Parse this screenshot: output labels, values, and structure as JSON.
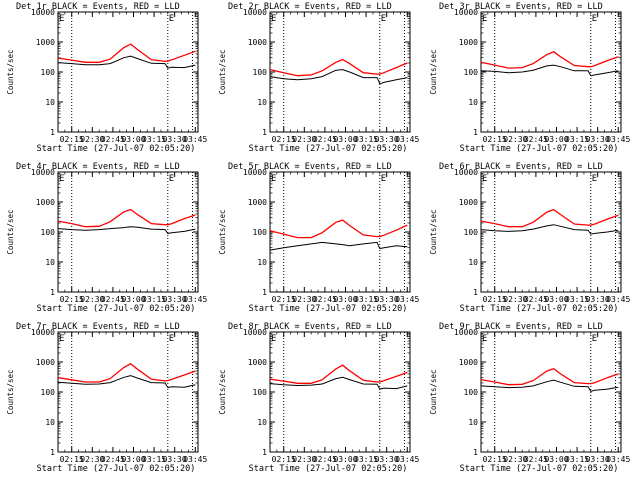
{
  "figure": {
    "common_xlabel": "Start Time (27-Jul-07 02:05:20)",
    "common_ylabel": "Counts/sec",
    "x_tick_labels": [
      "02:15",
      "02:30",
      "02:45",
      "03:00",
      "03:15",
      "03:30",
      "03:45"
    ],
    "y_tick_labels": [
      "1",
      "10",
      "100",
      "1000",
      "10000"
    ],
    "corner_marks": [
      "E",
      "E"
    ],
    "colors": {
      "events": "#000000",
      "lld": "#ff0000",
      "axes": "#000000",
      "background": "#ffffff"
    }
  },
  "chart_data": [
    {
      "type": "line",
      "title": "Det 1r BLACK = Events, RED = LLD",
      "xlabel": "Start Time (27-Jul-07 02:05:20)",
      "ylabel": "Counts/sec",
      "y_scale": "log",
      "ylim": [
        1,
        10000
      ],
      "xlim_minutes": [
        0,
        102
      ],
      "x_ticks": [
        "02:15",
        "02:30",
        "02:45",
        "03:00",
        "03:15",
        "03:30",
        "03:45"
      ],
      "y_ticks": [
        "1",
        "10",
        "100",
        "1000",
        "10000"
      ],
      "vertical_dotted_minutes": [
        10,
        80,
        98
      ],
      "x": [
        0,
        10,
        20,
        30,
        38,
        48,
        53,
        58,
        68,
        78,
        80,
        83,
        92,
        100
      ],
      "series": [
        {
          "values": [
            205,
            190,
            175,
            175,
            190,
            300,
            340,
            280,
            195,
            190,
            135,
            145,
            140,
            170
          ]
        },
        {
          "values": [
            290,
            250,
            210,
            210,
            270,
            650,
            850,
            560,
            260,
            225,
            230,
            255,
            360,
            490
          ]
        }
      ]
    },
    {
      "type": "line",
      "title": "Det 2r BLACK = Events, RED = LLD",
      "xlabel": "Start Time (27-Jul-07 02:05:20)",
      "ylabel": "Counts/sec",
      "y_scale": "log",
      "ylim": [
        1,
        10000
      ],
      "xlim_minutes": [
        0,
        102
      ],
      "x_ticks": [
        "02:15",
        "02:30",
        "02:45",
        "03:00",
        "03:15",
        "03:30",
        "03:45"
      ],
      "y_ticks": [
        "1",
        "10",
        "100",
        "1000",
        "10000"
      ],
      "vertical_dotted_minutes": [
        10,
        80,
        98
      ],
      "x": [
        0,
        10,
        20,
        30,
        38,
        48,
        53,
        58,
        68,
        78,
        80,
        83,
        92,
        100
      ],
      "series": [
        {
          "values": [
            70,
            60,
            55,
            60,
            70,
            115,
            120,
            100,
            65,
            65,
            40,
            45,
            55,
            65
          ]
        },
        {
          "values": [
            120,
            95,
            75,
            80,
            110,
            210,
            260,
            190,
            95,
            85,
            85,
            95,
            140,
            200
          ]
        }
      ]
    },
    {
      "type": "line",
      "title": "Det 3r BLACK = Events, RED = LLD",
      "xlabel": "Start Time (27-Jul-07 02:05:20)",
      "ylabel": "Counts/sec",
      "y_scale": "log",
      "ylim": [
        1,
        10000
      ],
      "xlim_minutes": [
        0,
        102
      ],
      "x_ticks": [
        "02:15",
        "02:30",
        "02:45",
        "03:00",
        "03:15",
        "03:30",
        "03:45"
      ],
      "y_ticks": [
        "1",
        "10",
        "100",
        "1000",
        "10000"
      ],
      "vertical_dotted_minutes": [
        10,
        80,
        98
      ],
      "x": [
        0,
        10,
        20,
        30,
        38,
        48,
        53,
        58,
        68,
        78,
        80,
        83,
        92,
        100
      ],
      "series": [
        {
          "values": [
            110,
            105,
            95,
            100,
            115,
            160,
            170,
            150,
            110,
            110,
            75,
            80,
            95,
            110
          ]
        },
        {
          "values": [
            210,
            170,
            135,
            140,
            190,
            380,
            470,
            320,
            165,
            150,
            150,
            165,
            240,
            320
          ]
        }
      ]
    },
    {
      "type": "line",
      "title": "Det 4r BLACK = Events, RED = LLD",
      "xlabel": "Start Time (27-Jul-07 02:05:20)",
      "ylabel": "Counts/sec",
      "y_scale": "log",
      "ylim": [
        1,
        10000
      ],
      "xlim_minutes": [
        0,
        102
      ],
      "x_ticks": [
        "02:15",
        "02:30",
        "02:45",
        "03:00",
        "03:15",
        "03:30",
        "03:45"
      ],
      "y_ticks": [
        "1",
        "10",
        "100",
        "1000",
        "10000"
      ],
      "vertical_dotted_minutes": [
        10,
        80,
        98
      ],
      "x": [
        0,
        10,
        20,
        30,
        38,
        48,
        53,
        58,
        68,
        78,
        80,
        83,
        92,
        100
      ],
      "series": [
        {
          "values": [
            130,
            120,
            115,
            120,
            130,
            140,
            150,
            145,
            125,
            120,
            90,
            95,
            105,
            125
          ]
        },
        {
          "values": [
            230,
            190,
            150,
            155,
            220,
            470,
            560,
            380,
            190,
            175,
            175,
            190,
            280,
            370
          ]
        }
      ]
    },
    {
      "type": "line",
      "title": "Det 5r BLACK = Events, RED = LLD",
      "xlabel": "Start Time (27-Jul-07 02:05:20)",
      "ylabel": "Counts/sec",
      "y_scale": "log",
      "ylim": [
        1,
        10000
      ],
      "xlim_minutes": [
        0,
        102
      ],
      "x_ticks": [
        "02:15",
        "02:30",
        "02:45",
        "03:00",
        "03:15",
        "03:30",
        "03:45"
      ],
      "y_ticks": [
        "1",
        "10",
        "100",
        "1000",
        "10000"
      ],
      "vertical_dotted_minutes": [
        10,
        80,
        98
      ],
      "x": [
        0,
        10,
        20,
        30,
        38,
        48,
        53,
        58,
        68,
        78,
        80,
        83,
        92,
        100
      ],
      "series": [
        {
          "values": [
            25,
            30,
            35,
            40,
            45,
            40,
            38,
            35,
            40,
            45,
            28,
            30,
            35,
            32
          ]
        },
        {
          "values": [
            110,
            85,
            65,
            65,
            95,
            210,
            250,
            165,
            80,
            70,
            70,
            78,
            115,
            170
          ]
        }
      ]
    },
    {
      "type": "line",
      "title": "Det 6r BLACK = Events, RED = LLD",
      "xlabel": "Start Time (27-Jul-07 02:05:20)",
      "ylabel": "Counts/sec",
      "y_scale": "log",
      "ylim": [
        1,
        10000
      ],
      "xlim_minutes": [
        0,
        102
      ],
      "x_ticks": [
        "02:15",
        "02:30",
        "02:45",
        "03:00",
        "03:15",
        "03:30",
        "03:45"
      ],
      "y_ticks": [
        "1",
        "10",
        "100",
        "1000",
        "10000"
      ],
      "vertical_dotted_minutes": [
        10,
        80,
        98
      ],
      "x": [
        0,
        10,
        20,
        30,
        38,
        48,
        53,
        58,
        68,
        78,
        80,
        83,
        92,
        100
      ],
      "series": [
        {
          "values": [
            120,
            110,
            105,
            110,
            125,
            160,
            175,
            155,
            120,
            115,
            85,
            90,
            100,
            115
          ]
        },
        {
          "values": [
            230,
            190,
            150,
            150,
            210,
            460,
            560,
            380,
            185,
            170,
            170,
            185,
            270,
            360
          ]
        }
      ]
    },
    {
      "type": "line",
      "title": "Det 7r BLACK = Events, RED = LLD",
      "xlabel": "Start Time (27-Jul-07 02:05:20)",
      "ylabel": "Counts/sec",
      "y_scale": "log",
      "ylim": [
        1,
        10000
      ],
      "xlim_minutes": [
        0,
        102
      ],
      "x_ticks": [
        "02:15",
        "02:30",
        "02:45",
        "03:00",
        "03:15",
        "03:30",
        "03:45"
      ],
      "y_ticks": [
        "1",
        "10",
        "100",
        "1000",
        "10000"
      ],
      "vertical_dotted_minutes": [
        10,
        80,
        98
      ],
      "x": [
        0,
        10,
        20,
        30,
        38,
        48,
        53,
        58,
        68,
        78,
        80,
        83,
        92,
        100
      ],
      "series": [
        {
          "values": [
            210,
            195,
            180,
            185,
            205,
            310,
            350,
            290,
            205,
            200,
            140,
            150,
            145,
            175
          ]
        },
        {
          "values": [
            300,
            255,
            215,
            215,
            280,
            660,
            870,
            570,
            270,
            235,
            240,
            265,
            370,
            500
          ]
        }
      ]
    },
    {
      "type": "line",
      "title": "Det 8r BLACK = Events, RED = LLD",
      "xlabel": "Start Time (27-Jul-07 02:05:20)",
      "ylabel": "Counts/sec",
      "y_scale": "log",
      "ylim": [
        1,
        10000
      ],
      "xlim_minutes": [
        0,
        102
      ],
      "x_ticks": [
        "02:15",
        "02:30",
        "02:45",
        "03:00",
        "03:15",
        "03:30",
        "03:45"
      ],
      "y_ticks": [
        "1",
        "10",
        "100",
        "1000",
        "10000"
      ],
      "vertical_dotted_minutes": [
        10,
        80,
        98
      ],
      "x": [
        0,
        10,
        20,
        30,
        38,
        48,
        53,
        58,
        68,
        78,
        80,
        83,
        92,
        100
      ],
      "series": [
        {
          "values": [
            190,
            175,
            165,
            170,
            185,
            280,
            310,
            260,
            185,
            180,
            125,
            135,
            130,
            160
          ]
        },
        {
          "values": [
            270,
            230,
            195,
            195,
            255,
            590,
            780,
            510,
            245,
            215,
            215,
            240,
            330,
            450
          ]
        }
      ]
    },
    {
      "type": "line",
      "title": "Det 9r BLACK = Events, RED = LLD",
      "xlabel": "Start Time (27-Jul-07 02:05:20)",
      "ylabel": "Counts/sec",
      "y_scale": "log",
      "ylim": [
        1,
        10000
      ],
      "xlim_minutes": [
        0,
        102
      ],
      "x_ticks": [
        "02:15",
        "02:30",
        "02:45",
        "03:00",
        "03:15",
        "03:30",
        "03:45"
      ],
      "y_ticks": [
        "1",
        "10",
        "100",
        "1000",
        "10000"
      ],
      "vertical_dotted_minutes": [
        10,
        80,
        98
      ],
      "x": [
        0,
        10,
        20,
        30,
        38,
        48,
        53,
        58,
        68,
        78,
        80,
        83,
        92,
        100
      ],
      "series": [
        {
          "values": [
            160,
            150,
            140,
            145,
            160,
            220,
            250,
            210,
            155,
            150,
            105,
            115,
            125,
            145
          ]
        },
        {
          "values": [
            260,
            215,
            175,
            180,
            240,
            500,
            600,
            400,
            205,
            190,
            190,
            205,
            300,
            400
          ]
        }
      ]
    }
  ]
}
